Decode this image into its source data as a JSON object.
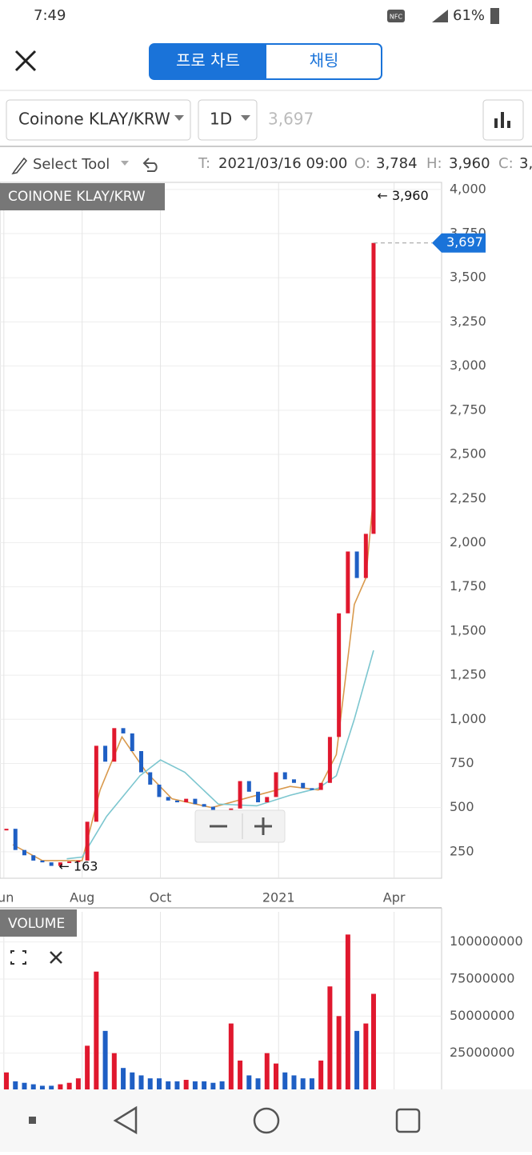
{
  "status_bar": {
    "time": "7:49",
    "nfc": "NFC",
    "battery": "61%"
  },
  "header": {
    "tabs": [
      "프로 차트",
      "채팅"
    ]
  },
  "toolbar": {
    "symbol": "Coinone KLAY/KRW",
    "interval": "1D",
    "price": "3,697"
  },
  "ohlc_bar": {
    "tool": "Select Tool",
    "t_label": "T:",
    "t": "2021/03/16 09:00",
    "o_label": "O:",
    "o": "3,784",
    "h_label": "H:",
    "h": "3,960",
    "c_label": "C:",
    "c": "3,"
  },
  "chart_data": [
    {
      "type": "candlestick",
      "title": "COINONE KLAY/KRW",
      "up_color": "#e0182e",
      "down_color": "#1f5fc4",
      "x": [
        "2020-06-03",
        "2020-06-10",
        "2020-06-17",
        "2020-06-24",
        "2020-07-01",
        "2020-07-08",
        "2020-07-15",
        "2020-07-22",
        "2020-07-29",
        "2020-08-05",
        "2020-08-12",
        "2020-08-19",
        "2020-08-26",
        "2020-09-02",
        "2020-09-09",
        "2020-09-16",
        "2020-09-23",
        "2020-09-30",
        "2020-10-07",
        "2020-10-14",
        "2020-10-21",
        "2020-10-28",
        "2020-11-04",
        "2020-11-11",
        "2020-11-18",
        "2020-11-25",
        "2020-12-02",
        "2020-12-09",
        "2020-12-16",
        "2020-12-23",
        "2020-12-30",
        "2021-01-06",
        "2021-01-13",
        "2021-01-20",
        "2021-01-27",
        "2021-02-03",
        "2021-02-10",
        "2021-02-17",
        "2021-02-24",
        "2021-03-03",
        "2021-03-10",
        "2021-03-16"
      ],
      "values": [
        380,
        260,
        230,
        200,
        190,
        170,
        190,
        195,
        200,
        420,
        850,
        760,
        950,
        920,
        820,
        700,
        630,
        560,
        540,
        530,
        550,
        520,
        505,
        485,
        480,
        495,
        650,
        590,
        530,
        560,
        700,
        660,
        640,
        610,
        600,
        640,
        900,
        1600,
        1950,
        1800,
        2050,
        3697
      ],
      "series": [
        {
          "color": "#d99a4e",
          "x": [
            "2020-06-08",
            "2020-07-01",
            "2020-08-01",
            "2020-08-15",
            "2020-09-01",
            "2020-09-20",
            "2020-10-10",
            "2020-11-10",
            "2020-12-10",
            "2021-01-10",
            "2021-02-01",
            "2021-02-15",
            "2021-03-01",
            "2021-03-10",
            "2021-03-16"
          ],
          "values": [
            290,
            200,
            200,
            600,
            900,
            700,
            550,
            500,
            560,
            620,
            600,
            800,
            1650,
            1800,
            2270
          ]
        },
        {
          "color": "#7cc6cf",
          "x": [
            "2020-07-20",
            "2020-08-01",
            "2020-08-20",
            "2020-09-15",
            "2020-10-01",
            "2020-10-20",
            "2020-11-15",
            "2020-12-15",
            "2021-01-10",
            "2021-02-01",
            "2021-02-15",
            "2021-03-01",
            "2021-03-16"
          ],
          "values": [
            210,
            220,
            450,
            680,
            770,
            700,
            520,
            510,
            570,
            610,
            680,
            1000,
            1390
          ]
        }
      ],
      "annotations": [
        {
          "label": "← 3,960",
          "value": 3960,
          "x": "2021-03-15"
        },
        {
          "label": "← 163",
          "value": 163,
          "x": "2020-07-10"
        }
      ],
      "last_price": {
        "label": "3,697",
        "value": 3697
      },
      "xlim": [
        "2020-05-29",
        "2021-05-08"
      ],
      "ylim": [
        100,
        4040
      ],
      "xticks": [
        {
          "value": "2020-06-01",
          "label": "Jun"
        },
        {
          "value": "2020-08-01",
          "label": "Aug"
        },
        {
          "value": "2020-10-01",
          "label": "Oct"
        },
        {
          "value": "2021-01-01",
          "label": "2021"
        },
        {
          "value": "2021-04-01",
          "label": "Apr"
        }
      ],
      "yticks": [
        250,
        500,
        750,
        {
          "value": 1000,
          "label": "1,000"
        },
        {
          "value": 1250,
          "label": "1,250"
        },
        {
          "value": 1500,
          "label": "1,500"
        },
        {
          "value": 1750,
          "label": "1,750"
        },
        {
          "value": 2000,
          "label": "2,000"
        },
        {
          "value": 2250,
          "label": "2,250"
        },
        {
          "value": 2500,
          "label": "2,500"
        },
        {
          "value": 2750,
          "label": "2,750"
        },
        {
          "value": 3000,
          "label": "3,000"
        },
        {
          "value": 3250,
          "label": "3,250"
        },
        {
          "value": 3500,
          "label": "3,500"
        },
        {
          "value": 3750,
          "label": "3,750"
        },
        {
          "value": 4000,
          "label": "4,000"
        }
      ],
      "grid": true
    },
    {
      "type": "bar",
      "title": "VOLUME",
      "values": [
        12000000,
        6000000,
        5000000,
        4000000,
        3000000,
        3000000,
        4000000,
        5000000,
        8000000,
        30000000,
        80000000,
        40000000,
        25000000,
        15000000,
        12000000,
        10000000,
        8000000,
        8000000,
        6000000,
        6000000,
        7000000,
        6000000,
        6000000,
        5000000,
        6000000,
        45000000,
        20000000,
        10000000,
        8000000,
        25000000,
        18000000,
        12000000,
        10000000,
        8000000,
        8000000,
        20000000,
        70000000,
        50000000,
        105000000,
        40000000,
        45000000,
        65000000
      ],
      "ylim": [
        0,
        123000000
      ],
      "yticks": [
        25000000,
        50000000,
        75000000,
        100000000
      ],
      "grid": true
    }
  ]
}
